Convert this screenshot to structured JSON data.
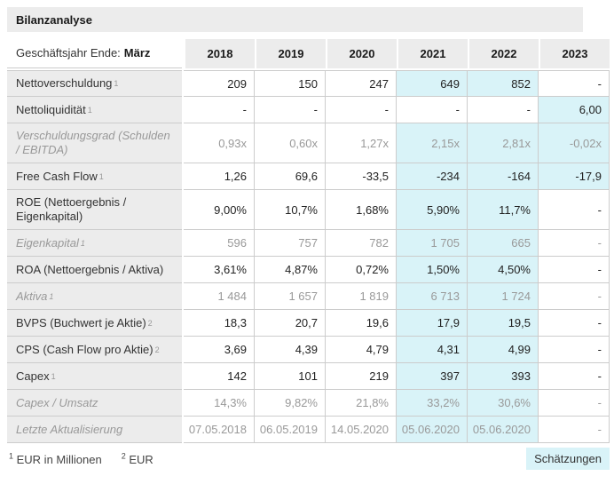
{
  "title": "Bilanzanalyse",
  "table": {
    "header": {
      "label_prefix": "Geschäftsjahr Ende:",
      "label_bold": "März",
      "years": [
        "2018",
        "2019",
        "2020",
        "2021",
        "2022",
        "2023"
      ]
    },
    "rows": [
      {
        "label": "Nettoverschuldung",
        "sup": "1",
        "muted": false,
        "values": [
          "209",
          "150",
          "247",
          "649",
          "852",
          "-"
        ],
        "estimates": [
          false,
          false,
          false,
          true,
          true,
          false
        ]
      },
      {
        "label": "Nettoliquidität",
        "sup": "1",
        "muted": false,
        "values": [
          "-",
          "-",
          "-",
          "-",
          "-",
          "6,00"
        ],
        "estimates": [
          false,
          false,
          false,
          false,
          false,
          true
        ]
      },
      {
        "label": "Verschuldungsgrad (Schulden / EBITDA)",
        "sup": "",
        "muted": true,
        "values": [
          "0,93x",
          "0,60x",
          "1,27x",
          "2,15x",
          "2,81x",
          "-0,02x"
        ],
        "estimates": [
          false,
          false,
          false,
          true,
          true,
          true
        ]
      },
      {
        "label": "Free Cash Flow",
        "sup": "1",
        "muted": false,
        "values": [
          "1,26",
          "69,6",
          "-33,5",
          "-234",
          "-164",
          "-17,9"
        ],
        "estimates": [
          false,
          false,
          false,
          true,
          true,
          true
        ]
      },
      {
        "label": "ROE (Nettoergebnis / Eigenkapital)",
        "sup": "",
        "muted": false,
        "values": [
          "9,00%",
          "10,7%",
          "1,68%",
          "5,90%",
          "11,7%",
          "-"
        ],
        "estimates": [
          false,
          false,
          false,
          true,
          true,
          false
        ]
      },
      {
        "label": "Eigenkapital",
        "sup": "1",
        "muted": true,
        "values": [
          "596",
          "757",
          "782",
          "1 705",
          "665",
          "-"
        ],
        "estimates": [
          false,
          false,
          false,
          true,
          true,
          false
        ]
      },
      {
        "label": "ROA (Nettoergebnis / Aktiva)",
        "sup": "",
        "muted": false,
        "values": [
          "3,61%",
          "4,87%",
          "0,72%",
          "1,50%",
          "4,50%",
          "-"
        ],
        "estimates": [
          false,
          false,
          false,
          true,
          true,
          false
        ]
      },
      {
        "label": "Aktiva",
        "sup": "1",
        "muted": true,
        "values": [
          "1 484",
          "1 657",
          "1 819",
          "6 713",
          "1 724",
          "-"
        ],
        "estimates": [
          false,
          false,
          false,
          true,
          true,
          false
        ]
      },
      {
        "label": "BVPS (Buchwert je Aktie)",
        "sup": "2",
        "muted": false,
        "values": [
          "18,3",
          "20,7",
          "19,6",
          "17,9",
          "19,5",
          "-"
        ],
        "estimates": [
          false,
          false,
          false,
          true,
          true,
          false
        ]
      },
      {
        "label": "CPS (Cash Flow pro Aktie)",
        "sup": "2",
        "muted": false,
        "values": [
          "3,69",
          "4,39",
          "4,79",
          "4,31",
          "4,99",
          "-"
        ],
        "estimates": [
          false,
          false,
          false,
          true,
          true,
          false
        ]
      },
      {
        "label": "Capex",
        "sup": "1",
        "muted": false,
        "values": [
          "142",
          "101",
          "219",
          "397",
          "393",
          "-"
        ],
        "estimates": [
          false,
          false,
          false,
          true,
          true,
          false
        ]
      },
      {
        "label": "Capex / Umsatz",
        "sup": "",
        "muted": true,
        "values": [
          "14,3%",
          "9,82%",
          "21,8%",
          "33,2%",
          "30,6%",
          "-"
        ],
        "estimates": [
          false,
          false,
          false,
          true,
          true,
          false
        ]
      },
      {
        "label": "Letzte Aktualisierung",
        "sup": "",
        "muted": true,
        "values": [
          "07.05.2018",
          "06.05.2019",
          "14.05.2020",
          "05.06.2020",
          "05.06.2020",
          "-"
        ],
        "estimates": [
          false,
          false,
          false,
          true,
          true,
          false
        ]
      }
    ]
  },
  "footer": {
    "footnotes": [
      {
        "sup": "1",
        "text": "EUR in Millionen"
      },
      {
        "sup": "2",
        "text": "EUR"
      }
    ],
    "estimates_label": "Schätzungen"
  },
  "colors": {
    "estimate_bg": "#d9f3f8",
    "panel_bg": "#ececec",
    "border": "#cccccc",
    "muted_text": "#999999",
    "text": "#333333"
  }
}
